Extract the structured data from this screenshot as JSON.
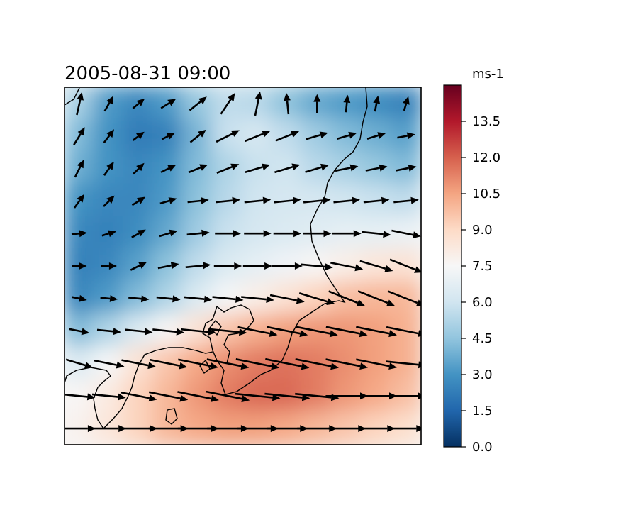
{
  "chart_data": {
    "type": "heatmap",
    "title": "2005-08-31 09:00",
    "colorbar": {
      "unit": "ms-1",
      "range": [
        0.0,
        15.0
      ],
      "colormap": "RdBu_r",
      "tick_labels": [
        "0.0",
        "1.5",
        "3.0",
        "4.5",
        "6.0",
        "7.5",
        "9.0",
        "10.5",
        "12.0",
        "13.5"
      ],
      "tick_values": [
        0.0,
        1.5,
        3.0,
        4.5,
        6.0,
        7.5,
        9.0,
        10.5,
        12.0,
        13.5
      ]
    },
    "grid": false,
    "legend": "colorbar-right",
    "field": {
      "rows": 11,
      "cols": 12,
      "speed": [
        [
          5.0,
          3.2,
          2.6,
          3.2,
          4.6,
          5.6,
          5.4,
          4.4,
          3.6,
          3.2,
          2.8,
          2.4
        ],
        [
          4.2,
          3.0,
          2.2,
          2.4,
          4.0,
          5.8,
          6.2,
          5.6,
          4.8,
          4.2,
          3.8,
          3.4
        ],
        [
          3.8,
          3.0,
          2.6,
          3.0,
          4.2,
          5.2,
          5.8,
          6.0,
          5.4,
          5.0,
          4.6,
          4.2
        ],
        [
          3.0,
          2.6,
          2.6,
          3.2,
          4.4,
          5.4,
          6.0,
          6.2,
          6.2,
          6.0,
          5.8,
          5.6
        ],
        [
          2.6,
          2.4,
          2.8,
          3.6,
          4.8,
          5.8,
          6.2,
          6.4,
          6.6,
          6.8,
          6.8,
          7.0
        ],
        [
          2.4,
          2.6,
          3.4,
          4.4,
          5.6,
          6.4,
          6.8,
          7.2,
          7.6,
          8.0,
          8.4,
          8.6
        ],
        [
          2.6,
          3.2,
          4.2,
          5.2,
          6.4,
          7.4,
          8.0,
          8.6,
          9.2,
          9.8,
          10.0,
          10.0
        ],
        [
          4.2,
          5.2,
          6.4,
          7.6,
          8.6,
          9.6,
          10.2,
          10.6,
          10.8,
          10.8,
          10.6,
          10.2
        ],
        [
          6.4,
          7.4,
          8.6,
          9.6,
          10.4,
          11.0,
          11.4,
          11.6,
          11.4,
          11.0,
          10.6,
          10.2
        ],
        [
          7.6,
          8.2,
          9.2,
          10.0,
          10.8,
          11.4,
          11.8,
          11.8,
          11.4,
          10.8,
          10.4,
          9.8
        ],
        [
          7.8,
          8.4,
          9.2,
          10.0,
          10.4,
          10.6,
          10.6,
          10.4,
          10.0,
          9.6,
          9.2,
          8.8
        ]
      ],
      "u": [
        [
          0.2,
          0.4,
          0.6,
          0.8,
          1.0,
          0.6,
          0.2,
          -0.1,
          0.0,
          0.1,
          0.2,
          0.3
        ],
        [
          0.5,
          0.6,
          0.8,
          1.0,
          1.0,
          1.0,
          1.0,
          1.0,
          1.0,
          1.0,
          1.0,
          1.0
        ],
        [
          0.4,
          0.5,
          0.6,
          0.8,
          1.0,
          1.0,
          1.0,
          1.0,
          1.0,
          1.0,
          1.0,
          1.0
        ],
        [
          0.5,
          0.6,
          0.8,
          1.0,
          1.0,
          1.0,
          1.0,
          1.0,
          1.0,
          1.0,
          1.0,
          1.0
        ],
        [
          1.0,
          1.0,
          0.9,
          1.0,
          1.0,
          1.0,
          1.0,
          1.0,
          1.0,
          1.0,
          1.0,
          1.0
        ],
        [
          1.0,
          1.0,
          0.8,
          1.0,
          1.0,
          1.0,
          1.0,
          1.0,
          1.0,
          1.0,
          1.0,
          1.0
        ],
        [
          1.0,
          1.0,
          1.0,
          1.0,
          1.0,
          1.0,
          1.0,
          1.0,
          1.0,
          1.0,
          1.0,
          1.0
        ],
        [
          1.0,
          1.0,
          1.0,
          1.0,
          1.0,
          1.0,
          1.0,
          1.0,
          1.0,
          1.0,
          1.0,
          1.0
        ],
        [
          1.0,
          1.0,
          1.0,
          1.0,
          1.0,
          1.0,
          1.0,
          1.0,
          1.0,
          1.0,
          1.0,
          1.0
        ],
        [
          1.0,
          1.0,
          1.0,
          1.0,
          1.0,
          1.0,
          1.0,
          1.0,
          1.0,
          1.0,
          1.0,
          1.0
        ],
        [
          1.0,
          1.0,
          1.0,
          1.0,
          1.0,
          1.0,
          1.0,
          1.0,
          1.0,
          1.0,
          1.0,
          1.0
        ]
      ],
      "v": [
        [
          -0.9,
          -0.7,
          -0.5,
          -0.5,
          -0.8,
          -0.9,
          -1.0,
          -1.0,
          -1.0,
          -1.0,
          -1.0,
          -1.0
        ],
        [
          -0.8,
          -0.8,
          -0.6,
          -0.5,
          -0.8,
          -0.5,
          -0.4,
          -0.4,
          -0.3,
          -0.3,
          -0.3,
          -0.2
        ],
        [
          -0.8,
          -0.7,
          -0.6,
          -0.4,
          -0.4,
          -0.4,
          -0.3,
          -0.3,
          -0.3,
          -0.2,
          -0.2,
          -0.2
        ],
        [
          -0.7,
          -0.6,
          -0.5,
          -0.3,
          -0.1,
          -0.1,
          -0.1,
          -0.1,
          -0.1,
          -0.1,
          -0.1,
          -0.1
        ],
        [
          -0.1,
          -0.3,
          -0.5,
          -0.3,
          -0.1,
          0.0,
          0.0,
          0.0,
          0.0,
          0.0,
          0.1,
          0.2
        ],
        [
          0.0,
          0.0,
          -0.4,
          -0.2,
          -0.1,
          0.0,
          0.0,
          0.0,
          0.1,
          0.2,
          0.3,
          0.4
        ],
        [
          0.2,
          0.1,
          0.1,
          0.1,
          0.1,
          0.1,
          0.1,
          0.2,
          0.3,
          0.4,
          0.4,
          0.4
        ],
        [
          0.2,
          0.1,
          0.1,
          0.1,
          0.1,
          0.1,
          0.2,
          0.2,
          0.2,
          0.2,
          0.2,
          0.2
        ],
        [
          0.3,
          0.2,
          0.2,
          0.2,
          0.2,
          0.2,
          0.2,
          0.2,
          0.2,
          0.2,
          0.2,
          0.1
        ],
        [
          0.1,
          0.1,
          0.2,
          0.2,
          0.2,
          0.2,
          0.1,
          0.1,
          0.1,
          0.0,
          0.0,
          0.0
        ],
        [
          0.0,
          0.0,
          0.0,
          0.0,
          0.0,
          0.0,
          0.0,
          0.0,
          0.0,
          0.0,
          0.0,
          0.0
        ]
      ]
    },
    "coastline": {
      "color": "#000000"
    }
  }
}
